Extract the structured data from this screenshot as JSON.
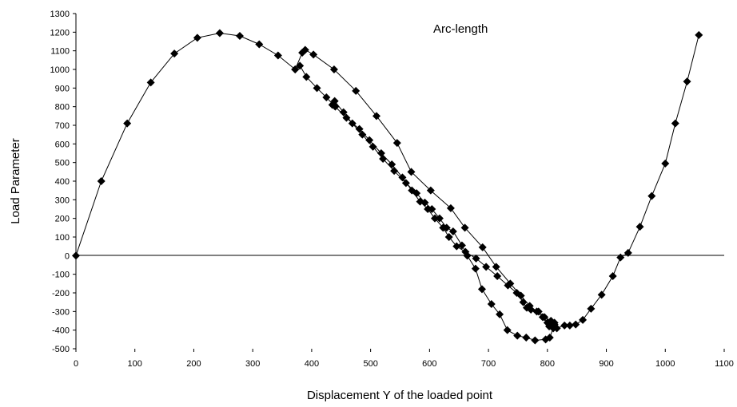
{
  "chart_data": {
    "type": "scatter",
    "title": "",
    "xlabel": "Displacement Y of the loaded point",
    "ylabel": "Load Parameter",
    "annotation": "Arc-length",
    "xlim": [
      0,
      1100
    ],
    "ylim": [
      -500,
      1300
    ],
    "x_ticks": [
      0,
      100,
      200,
      300,
      400,
      500,
      600,
      700,
      800,
      900,
      1000,
      1100
    ],
    "y_ticks": [
      -500,
      -400,
      -300,
      -200,
      -100,
      0,
      100,
      200,
      300,
      400,
      500,
      600,
      700,
      800,
      900,
      1000,
      1100,
      1200,
      1300
    ],
    "grid": false,
    "legend": "none",
    "marker": "diamond",
    "line_color": "#000000",
    "marker_color": "#000000",
    "series": [
      {
        "x": [
          0,
          43,
          87,
          127,
          167,
          206,
          244,
          278,
          311,
          343,
          372,
          384,
          389,
          403,
          438,
          475,
          510,
          545,
          569,
          602,
          636,
          660,
          690,
          713,
          737,
          755,
          770,
          782,
          792,
          800,
          803,
          810,
          816,
          829,
          838,
          848,
          860,
          874,
          892,
          911,
          924,
          937,
          957,
          977,
          1000,
          1017,
          1037,
          1057
        ],
        "y": [
          0,
          400,
          710,
          930,
          1085,
          1170,
          1195,
          1180,
          1135,
          1075,
          1000,
          1090,
          1105,
          1080,
          1000,
          885,
          750,
          605,
          450,
          350,
          255,
          150,
          45,
          -60,
          -150,
          -215,
          -270,
          -300,
          -330,
          -360,
          -380,
          -390,
          -390,
          -375,
          -375,
          -370,
          -345,
          -285,
          -210,
          -110,
          -10,
          15,
          155,
          320,
          495,
          710,
          935,
          1185
        ]
      },
      {
        "x": [
          372,
          380,
          391,
          409,
          425,
          440,
          459,
          481,
          498,
          518,
          536,
          554,
          570,
          584,
          597,
          609,
          623,
          633,
          646,
          661,
          679,
          696,
          715,
          733,
          748,
          759,
          765,
          772,
          785,
          795,
          806,
          812
        ],
        "y": [
          1000,
          1020,
          960,
          900,
          850,
          800,
          740,
          680,
          620,
          550,
          490,
          420,
          350,
          290,
          250,
          200,
          150,
          100,
          50,
          20,
          -15,
          -60,
          -110,
          -160,
          -200,
          -250,
          -280,
          -290,
          -300,
          -330,
          -350,
          -360
        ]
      },
      {
        "x": [
          435,
          439,
          454,
          469,
          486,
          504,
          521,
          540,
          560,
          578,
          592,
          604,
          617,
          629,
          640,
          655,
          664,
          678,
          689,
          705,
          719,
          732,
          749,
          764,
          779,
          797,
          804,
          812
        ],
        "y": [
          810,
          830,
          770,
          710,
          650,
          585,
          520,
          455,
          390,
          335,
          285,
          250,
          200,
          150,
          130,
          55,
          0,
          -70,
          -180,
          -260,
          -315,
          -400,
          -430,
          -440,
          -455,
          -450,
          -440,
          -370
        ]
      }
    ]
  }
}
